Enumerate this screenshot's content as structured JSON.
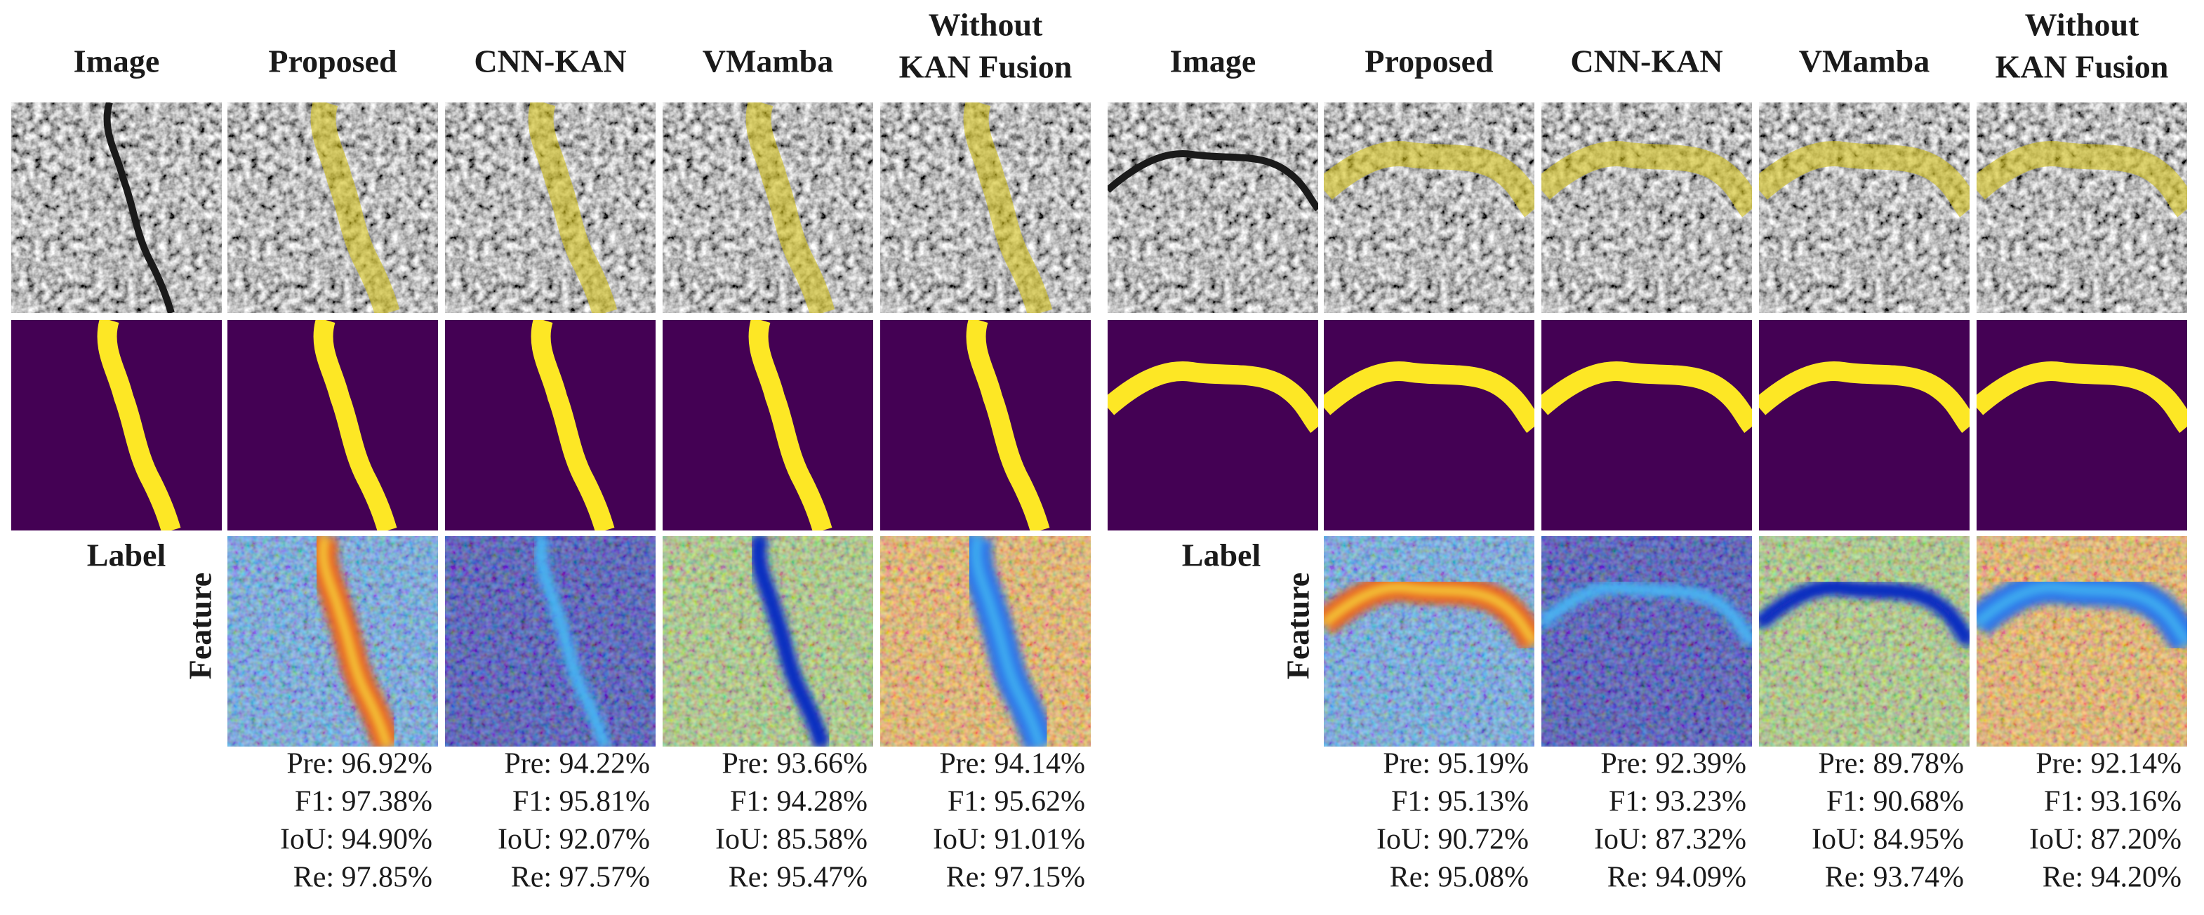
{
  "panels": [
    {
      "columns": [
        [
          "Image"
        ],
        [
          "Proposed"
        ],
        [
          "CNN-KAN"
        ],
        [
          "VMamba"
        ],
        [
          "Without",
          "KAN Fusion"
        ]
      ],
      "row_labels": [
        "Label",
        "Feature"
      ],
      "metrics": [
        [
          "Pre: 96.92%",
          "F1: 97.38%",
          "IoU: 94.90%",
          "Re: 97.85%"
        ],
        [
          "Pre: 94.22%",
          "F1: 95.81%",
          "IoU: 92.07%",
          "Re: 97.57%"
        ],
        [
          "Pre: 93.66%",
          "F1: 94.28%",
          "IoU: 85.58%",
          "Re: 95.47%"
        ],
        [
          "Pre: 94.14%",
          "F1: 95.62%",
          "IoU: 91.01%",
          "Re: 97.15%"
        ]
      ]
    },
    {
      "columns": [
        [
          "Image"
        ],
        [
          "Proposed"
        ],
        [
          "CNN-KAN"
        ],
        [
          "VMamba"
        ],
        [
          "Without",
          "KAN Fusion"
        ]
      ],
      "row_labels": [
        "Label",
        "Feature"
      ],
      "metrics": [
        [
          "Pre: 95.19%",
          "F1: 95.13%",
          "IoU: 90.72%",
          "Re: 95.08%"
        ],
        [
          "Pre: 92.39%",
          "F1: 93.23%",
          "IoU: 87.32%",
          "Re: 94.09%"
        ],
        [
          "Pre: 89.78%",
          "F1: 90.68%",
          "IoU: 84.95%",
          "Re: 93.74%"
        ],
        [
          "Pre: 92.14%",
          "F1: 93.16%",
          "IoU: 87.20%",
          "Re: 94.20%"
        ]
      ]
    }
  ]
}
